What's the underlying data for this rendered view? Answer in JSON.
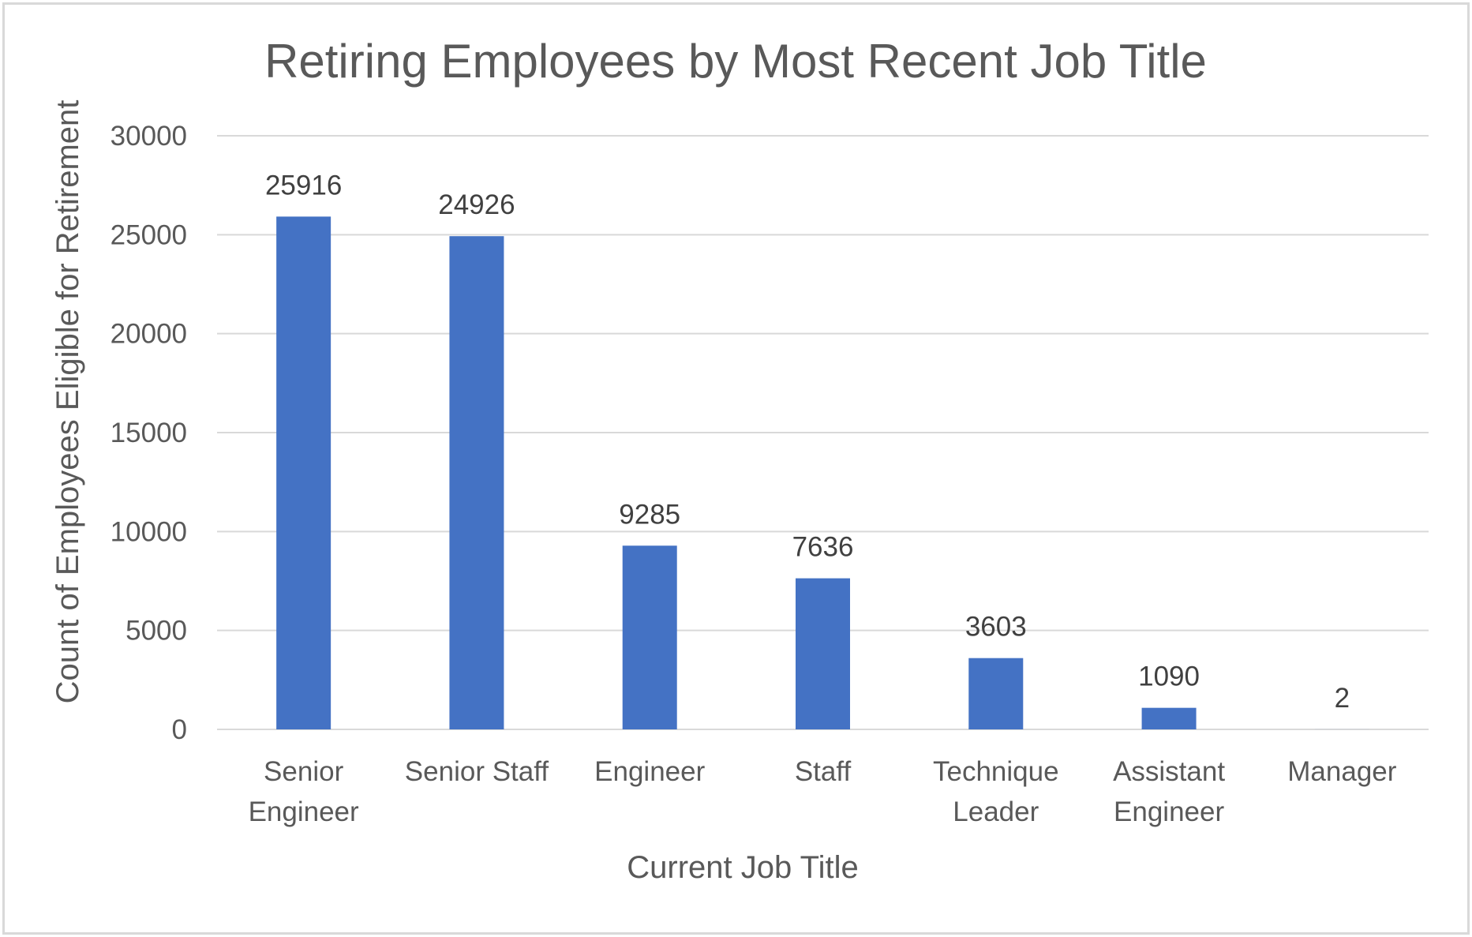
{
  "chart_data": {
    "type": "bar",
    "title": "Retiring Employees by Most Recent Job Title",
    "xlabel": "Current Job Title",
    "ylabel": "Count of Employees Eligible for Retirement",
    "categories": [
      [
        "Senior",
        "Engineer"
      ],
      [
        "Senior Staff"
      ],
      [
        "Engineer"
      ],
      [
        "Staff"
      ],
      [
        "Technique",
        "Leader"
      ],
      [
        "Assistant",
        "Engineer"
      ],
      [
        "Manager"
      ]
    ],
    "values": [
      25916,
      24926,
      9285,
      7636,
      3603,
      1090,
      2
    ],
    "data_labels": [
      "25916",
      "24926",
      "9285",
      "7636",
      "3603",
      "1090",
      "2"
    ],
    "ylim": [
      0,
      30000
    ],
    "yticks": [
      "0",
      "5000",
      "10000",
      "15000",
      "20000",
      "25000",
      "30000"
    ],
    "ytick_values": [
      0,
      5000,
      10000,
      15000,
      20000,
      25000,
      30000
    ],
    "grid": true,
    "legend": "none",
    "bar_color": "#4472C4"
  }
}
